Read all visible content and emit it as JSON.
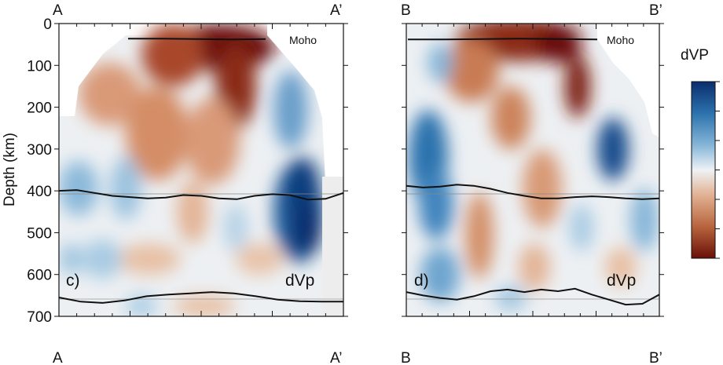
{
  "chart_data": {
    "type": "heatmap",
    "ylabel": "Depth (km)",
    "ylim": [
      0,
      700
    ],
    "yticks": [
      0,
      100,
      200,
      300,
      400,
      500,
      600,
      700
    ],
    "ytick_labels": [
      "0",
      "100",
      "200",
      "300",
      "400",
      "500",
      "600",
      "700"
    ],
    "colorbar": {
      "title": "dVP",
      "colors": [
        "#0a2d6e",
        "#2c72ad",
        "#86b6d8",
        "#eef2f5",
        "#e2b294",
        "#b8653e",
        "#6a0f08"
      ]
    },
    "panels": [
      {
        "id": "c",
        "label": "c)",
        "variable": "dVp",
        "start_top": "A",
        "end_top": "A’",
        "start_bottom": "A",
        "end_bottom": "A’",
        "moho_label": "Moho",
        "moho_depth": [
          36,
          36,
          37,
          38,
          37
        ],
        "d410_depth": [
          400,
          398,
          405,
          412,
          415,
          418,
          416,
          410,
          412,
          418,
          420,
          412,
          408,
          410,
          421,
          419,
          405
        ],
        "d660_depth": [
          655,
          665,
          668,
          662,
          652,
          648,
          645,
          642,
          645,
          652,
          660,
          664,
          665,
          665
        ],
        "anomalies": [
          {
            "sign": "slow",
            "depth_km": 40
          },
          {
            "sign": "slow",
            "depth_km": 170
          },
          {
            "sign": "fast",
            "depth_km": 420
          },
          {
            "sign": "fast",
            "depth_km": 330
          },
          {
            "sign": "fast",
            "depth_km": 470
          }
        ]
      },
      {
        "id": "d",
        "label": "d)",
        "variable": "dVp",
        "start_top": "B",
        "end_top": "B’",
        "start_bottom": "B",
        "end_bottom": "B’",
        "moho_label": "Moho",
        "moho_depth": [
          38,
          38,
          37,
          36,
          37,
          38
        ],
        "d410_depth": [
          388,
          392,
          390,
          385,
          388,
          395,
          405,
          412,
          418,
          418,
          415,
          413,
          415,
          418,
          420,
          418
        ],
        "d660_depth": [
          642,
          650,
          656,
          660,
          652,
          640,
          636,
          642,
          636,
          640,
          634,
          648,
          660,
          672,
          670,
          648
        ],
        "anomalies": [
          {
            "sign": "slow",
            "depth_km": 40
          },
          {
            "sign": "slow",
            "depth_km": 150
          },
          {
            "sign": "fast",
            "depth_km": 300
          },
          {
            "sign": "fast",
            "depth_km": 280
          }
        ]
      }
    ]
  }
}
